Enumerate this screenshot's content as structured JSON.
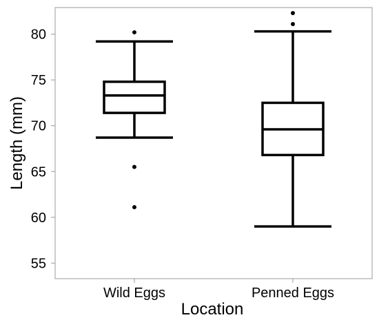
{
  "chart_data": {
    "type": "box",
    "title": "",
    "xlabel": "Location",
    "ylabel": "Length (mm)",
    "ylim": [
      53.3,
      82.9
    ],
    "yticks": [
      55,
      60,
      65,
      70,
      75,
      80
    ],
    "ytick_labels": [
      "55",
      "60",
      "65",
      "70",
      "75",
      "80"
    ],
    "grid": false,
    "categories": [
      "Wild Eggs",
      "Penned Eggs"
    ],
    "boxes": [
      {
        "category": "Wild Eggs",
        "whisker_low": 68.7,
        "q1": 71.4,
        "median": 73.3,
        "q3": 74.8,
        "whisker_high": 79.2,
        "outliers": [
          80.2,
          65.5,
          61.1
        ]
      },
      {
        "category": "Penned Eggs",
        "whisker_low": 59.0,
        "q1": 66.8,
        "median": 69.6,
        "q3": 72.5,
        "whisker_high": 80.3,
        "outliers": [
          82.3,
          81.1
        ]
      }
    ],
    "colors": {
      "box_line": "#000000",
      "frame": "#999999",
      "background": "#ffffff"
    }
  }
}
